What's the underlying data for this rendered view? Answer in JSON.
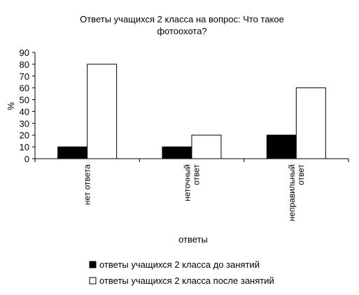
{
  "chart_data": {
    "type": "bar",
    "title_lines": [
      "Ответы учащихся 2 класса на вопрос: Что такое",
      "фотоохота?"
    ],
    "ylabel": "%",
    "xlabel": "ответы",
    "ylim": [
      0,
      90
    ],
    "yticks": [
      0,
      10,
      20,
      30,
      40,
      50,
      60,
      70,
      80,
      90
    ],
    "categories": [
      [
        "нет ответа"
      ],
      [
        "неточный",
        "ответ"
      ],
      [
        "неправильный",
        "ответ"
      ]
    ],
    "series": [
      {
        "name": "ответы учащихся 2 класса до занятий",
        "values": [
          10,
          10,
          20
        ],
        "color": "#000000"
      },
      {
        "name": "ответы учащихся 2 класса после занятий",
        "values": [
          80,
          20,
          60
        ],
        "color": "#ffffff"
      }
    ],
    "grid": false,
    "legend_position": "bottom"
  }
}
